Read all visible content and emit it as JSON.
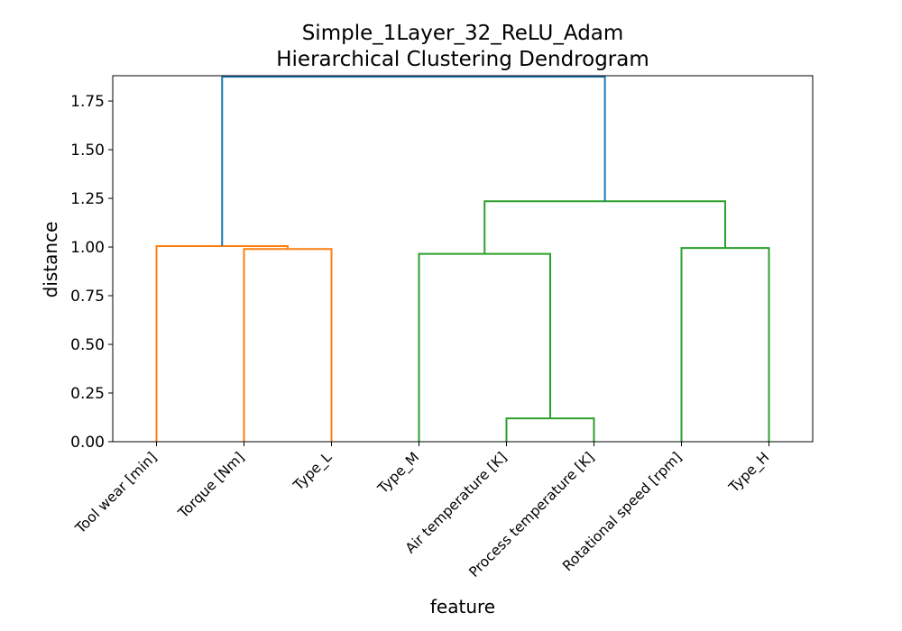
{
  "chart_data": {
    "type": "dendrogram",
    "title": "Simple_1Layer_32_ReLU_Adam",
    "subtitle": "Hierarchical Clustering Dendrogram",
    "xlabel": "feature",
    "ylabel": "distance",
    "ylim": [
      0,
      1.88
    ],
    "yticks": [
      "0.00",
      "0.25",
      "0.50",
      "0.75",
      "1.00",
      "1.25",
      "1.50",
      "1.75"
    ],
    "yticks_values": [
      0,
      0.25,
      0.5,
      0.75,
      1.0,
      1.25,
      1.5,
      1.75
    ],
    "leaves": [
      "Tool wear [min]",
      "Torque [Nm]",
      "Type_L",
      "Type_M",
      "Air temperature [K]",
      "Process temperature [K]",
      "Rotational speed [rpm]",
      "Type_H"
    ],
    "grid": false,
    "colors": {
      "cluster_1": "#ff7f0e",
      "cluster_2": "#2ca02c",
      "above_threshold": "#1f77b4"
    },
    "links": [
      {
        "left": "Torque [Nm]",
        "right": "Type_L",
        "distance": 0.99,
        "color": "cluster_1"
      },
      {
        "left": "Tool wear [min]",
        "right": "Torque [Nm] + Type_L",
        "distance": 1.005,
        "color": "cluster_1"
      },
      {
        "left": "Air temperature [K]",
        "right": "Process temperature [K]",
        "distance": 0.12,
        "color": "cluster_2"
      },
      {
        "left": "Type_M",
        "right": "Air temperature [K] + Process temperature [K]",
        "distance": 0.965,
        "color": "cluster_2"
      },
      {
        "left": "Rotational speed [rpm]",
        "right": "Type_H",
        "distance": 0.995,
        "color": "cluster_2"
      },
      {
        "left": "Type_M + Air temperature [K] + Process temperature [K]",
        "right": "Rotational speed [rpm] + Type_H",
        "distance": 1.235,
        "color": "cluster_2"
      },
      {
        "left": "Tool wear [min] + Torque [Nm] + Type_L",
        "right": "Type_M + Air temperature [K] + Process temperature [K] + Rotational speed [rpm] + Type_H",
        "distance": 1.875,
        "color": "above_threshold"
      }
    ]
  }
}
